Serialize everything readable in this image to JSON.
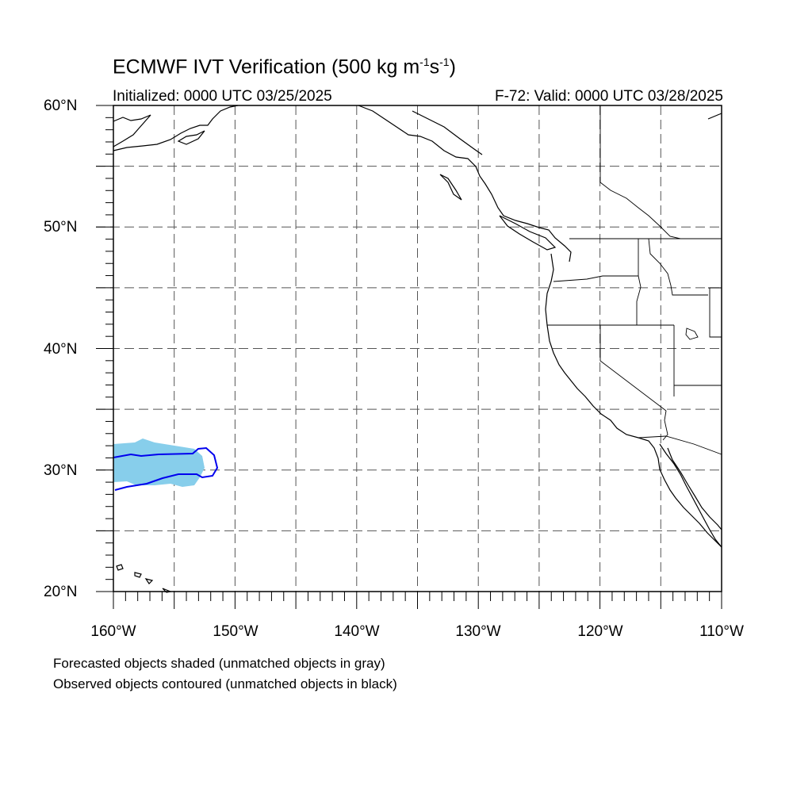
{
  "title": {
    "main": "ECMWF IVT Verification (500 kg m",
    "sup1": "-1",
    "mid": "s",
    "sup2": "-1",
    "end": ")"
  },
  "initialized": "Initialized: 0000 UTC 03/25/2025",
  "valid": "F-72: Valid: 0000 UTC 03/28/2025",
  "lat_labels": [
    "60°N",
    "50°N",
    "40°N",
    "30°N",
    "20°N"
  ],
  "lon_labels": [
    "160°W",
    "150°W",
    "140°W",
    "130°W",
    "120°W",
    "110°W"
  ],
  "notes": [
    "Forecasted objects shaded (unmatched objects in gray)",
    "Observed objects contoured (unmatched objects in black)"
  ],
  "colors": {
    "forecast_fill": "#87ceeb",
    "observed_contour": "#0000ee",
    "coast": "#000000",
    "grid": "#555555"
  }
}
